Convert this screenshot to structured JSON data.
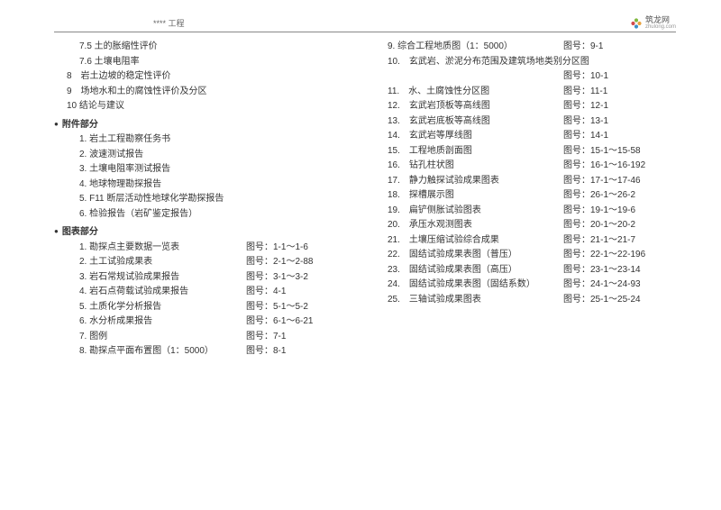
{
  "header": {
    "title": "**** 工程",
    "logo_text": "筑龙网",
    "logo_sub": "zhulong.com"
  },
  "left_intro": [
    {
      "indent": 2,
      "text": "7.5 土的胀缩性评价"
    },
    {
      "indent": 2,
      "text": "7.6 土壤电阻率"
    },
    {
      "indent": 1,
      "text": "8　岩土边坡的稳定性评价"
    },
    {
      "indent": 1,
      "text": "9　场地水和土的腐蚀性评价及分区"
    },
    {
      "indent": 1,
      "text": "10 结论与建议"
    }
  ],
  "attachments": {
    "title": "附件部分",
    "items": [
      "1. 岩土工程勘察任务书",
      "2. 波速测试报告",
      "3. 土壤电阻率测试报告",
      "4. 地球物理勘探报告",
      "5. F11 断层活动性地球化学勘探报告",
      "6. 检验报告（岩矿鉴定报告）"
    ]
  },
  "charts": {
    "title": "图表部分",
    "items": [
      {
        "label": "1. 勘探点主要数据一览表",
        "num": "图号：1-1～1-6"
      },
      {
        "label": "2. 土工试验成果表",
        "num": "图号：2-1～2-88"
      },
      {
        "label": "3. 岩石常规试验成果报告",
        "num": "图号：3-1～3-2"
      },
      {
        "label": "4. 岩石点荷载试验成果报告",
        "num": "图号：4-1"
      },
      {
        "label": "5. 土质化学分析报告",
        "num": "图号：5-1～5-2"
      },
      {
        "label": "6. 水分析成果报告",
        "num": "图号：6-1～6-21"
      },
      {
        "label": "7. 图例",
        "num": "图号：7-1"
      },
      {
        "label": "8. 勘探点平面布置图（1：5000）",
        "num": "图号：8-1"
      }
    ]
  },
  "right": [
    {
      "label": "9. 综合工程地质图（1：5000）",
      "num": "图号：9-1"
    },
    {
      "label": "10.　玄武岩、淤泥分布范围及建筑场地类别分区图",
      "num": ""
    },
    {
      "label": "",
      "num": "图号：10-1"
    },
    {
      "label": "11.　水、土腐蚀性分区图",
      "num": "图号：11-1"
    },
    {
      "label": "12.　玄武岩顶板等高线图",
      "num": "图号：12-1"
    },
    {
      "label": "13.　玄武岩底板等高线图",
      "num": "图号：13-1"
    },
    {
      "label": "14.　玄武岩等厚线图",
      "num": "图号：14-1"
    },
    {
      "label": "15.　工程地质剖面图",
      "num": "图号：15-1～15-58"
    },
    {
      "label": "16.　钻孔柱状图",
      "num": "图号：16-1～16-192"
    },
    {
      "label": "17.　静力触探试验成果图表",
      "num": "图号：17-1～17-46"
    },
    {
      "label": "18.　探槽展示图",
      "num": "图号：26-1～26-2"
    },
    {
      "label": "19.　扁铲侧胀试验图表",
      "num": "图号：19-1～19-6"
    },
    {
      "label": "20.　承压水观测图表",
      "num": "图号：20-1～20-2"
    },
    {
      "label": "21.　土壤压缩试验综合成果",
      "num": "图号：21-1～21-7"
    },
    {
      "label": "22.　固结试验成果表图（普压）",
      "num": "图号：22-1～22-196"
    },
    {
      "label": "23.　固结试验成果表图（高压）",
      "num": "图号：23-1～23-14"
    },
    {
      "label": "24.　固结试验成果表图（固结系数）",
      "num": "图号：24-1～24-93"
    },
    {
      "label": "25.　三轴试验成果图表",
      "num": "图号：25-1～25-24"
    }
  ]
}
